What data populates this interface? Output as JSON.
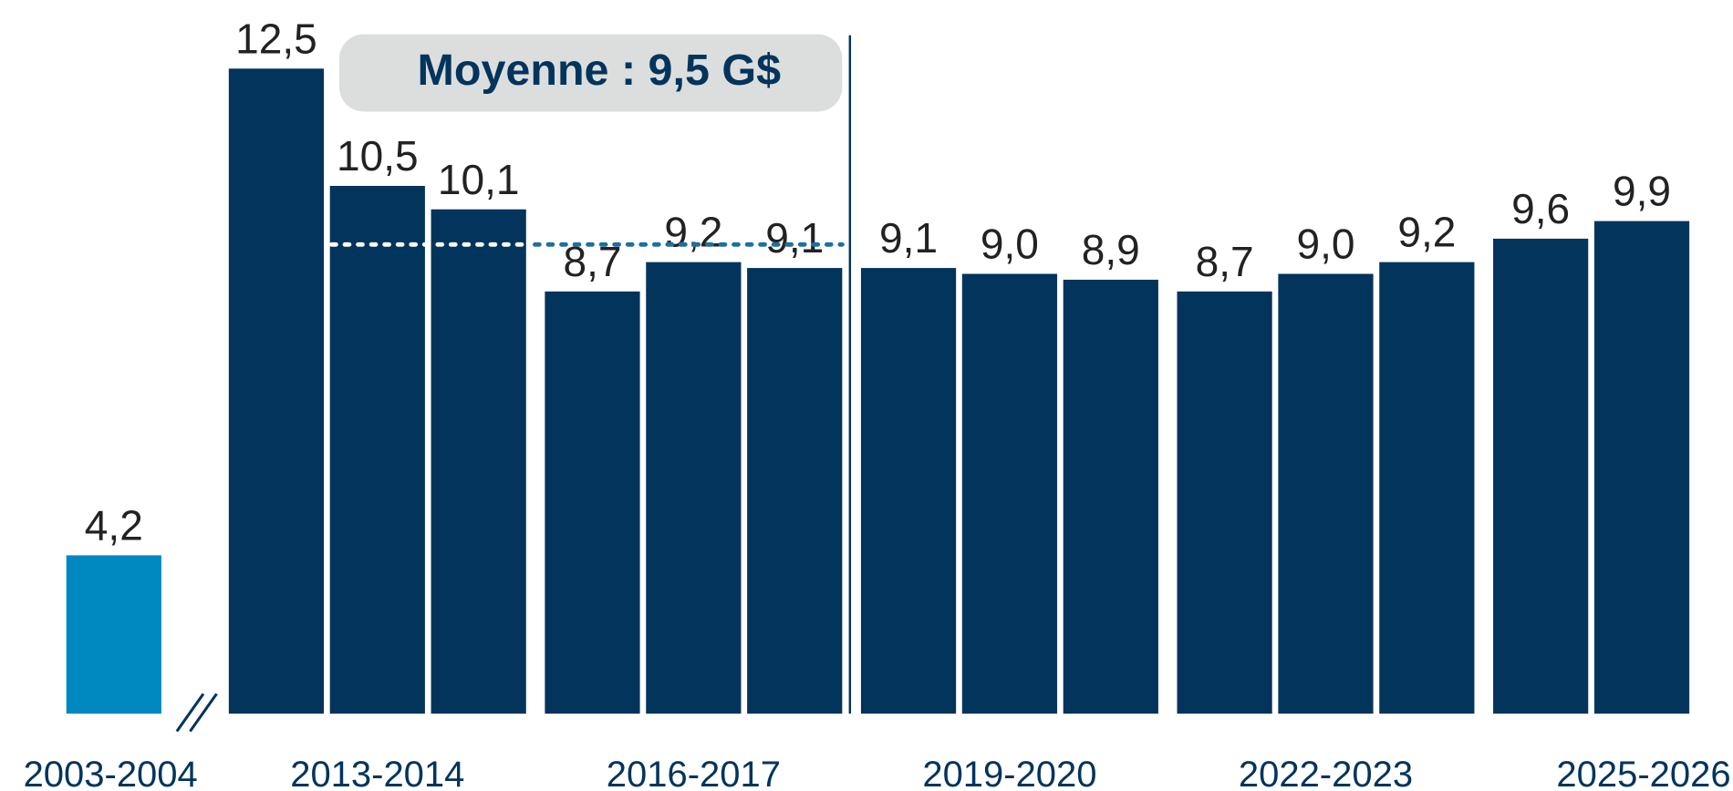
{
  "chart_data": {
    "type": "bar",
    "categories": [
      "2003-2004",
      null,
      "2013-2014",
      null,
      null,
      "2016-2017",
      null,
      null,
      "2019-2020",
      null,
      null,
      "2022-2023",
      null,
      null,
      "2025-2026"
    ],
    "values": [
      4.2,
      12.5,
      10.5,
      10.1,
      8.7,
      9.2,
      9.1,
      9.1,
      9.0,
      8.9,
      8.7,
      9.0,
      9.2,
      9.6,
      9.9
    ],
    "value_labels": [
      "4,2",
      "12,5",
      "10,5",
      "10,1",
      "8,7",
      "9,2",
      "9,1",
      "9,1",
      "9,0",
      "8,9",
      "8,7",
      "9,0",
      "9,2",
      "9,6",
      "9,9"
    ],
    "colors": [
      "#0088c0",
      "#02345c",
      "#02345c",
      "#02345c",
      "#02345c",
      "#02345c",
      "#02345c",
      "#02345c",
      "#02345c",
      "#02345c",
      "#02345c",
      "#02345c",
      "#02345c",
      "#02345c",
      "#02345c"
    ],
    "ylim": [
      1.5,
      13.67
    ],
    "mean": {
      "value": 9.5,
      "label": "Moyenne : 9,5 G$"
    }
  }
}
